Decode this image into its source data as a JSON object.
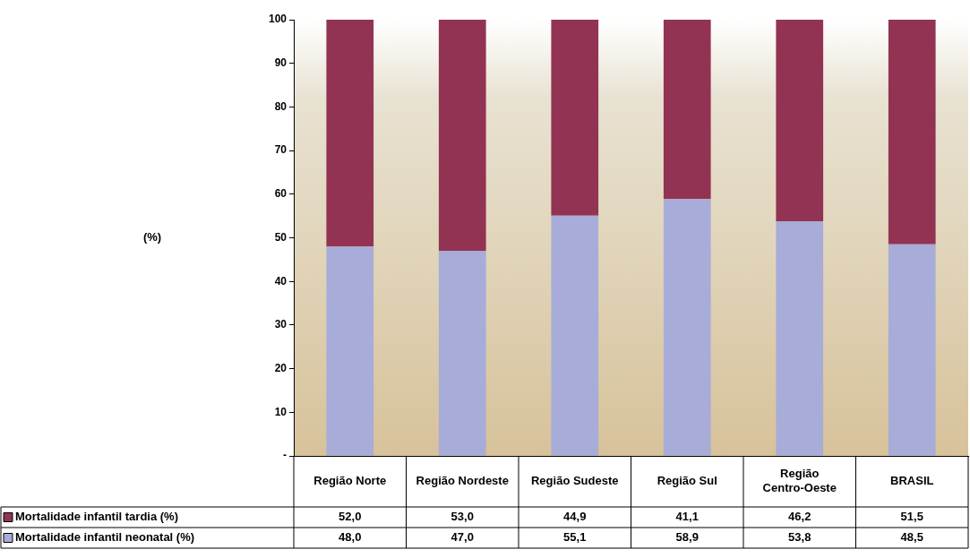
{
  "chart_data": {
    "type": "bar",
    "stacked": true,
    "annotations": [
      "(%)"
    ],
    "categories": [
      "Região Norte",
      "Região Nordeste",
      "Região Sudeste",
      "Região Sul",
      "Região Centro-Oeste",
      "BRASIL"
    ],
    "series": [
      {
        "name": "Mortalidade infantil neonatal (%)",
        "color": "#a7acd8",
        "values": [
          48.0,
          47.0,
          55.1,
          58.9,
          53.8,
          48.5
        ],
        "value_labels": [
          "48,0",
          "47,0",
          "55,1",
          "58,9",
          "53,8",
          "48,5"
        ]
      },
      {
        "name": "Mortalidade infantil tardia (%)",
        "color": "#933353",
        "values": [
          52.0,
          53.0,
          44.9,
          41.1,
          46.2,
          51.5
        ],
        "value_labels": [
          "52,0",
          "53,0",
          "44,9",
          "41,1",
          "46,2",
          "51,5"
        ]
      }
    ],
    "ylim": [
      0,
      100
    ],
    "yticks": [
      {
        "value": 0,
        "label": "-"
      },
      10,
      20,
      30,
      40,
      50,
      60,
      70,
      80,
      90,
      100
    ],
    "grid": false,
    "legend": "bottom left"
  }
}
